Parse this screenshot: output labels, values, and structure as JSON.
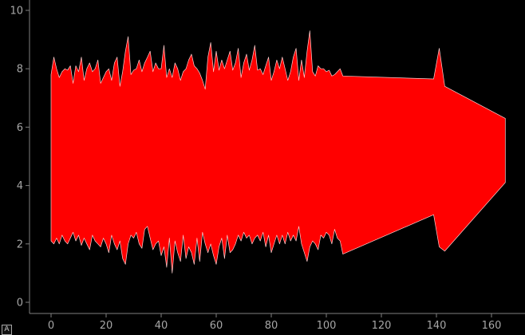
{
  "chart_data": {
    "type": "area",
    "title": "",
    "xlabel": "",
    "ylabel": "",
    "xlim": [
      -6.5,
      169
    ],
    "ylim": [
      -0.3,
      10.5
    ],
    "x_ticks": [
      "0",
      "20",
      "40",
      "60",
      "80",
      "100",
      "120",
      "140",
      "160"
    ],
    "y_ticks": [
      "0",
      "2",
      "4",
      "6",
      "8",
      "10"
    ],
    "grid": false,
    "legend": "none",
    "fill_color": "#ff0000",
    "series": [
      {
        "x": [
          0,
          1,
          2,
          3,
          4,
          5,
          6,
          7,
          8,
          9,
          10,
          11,
          12,
          13,
          14,
          15,
          16,
          17,
          18,
          19,
          20,
          21,
          22,
          23,
          24,
          25,
          26,
          27,
          28,
          29,
          30,
          31,
          32,
          33,
          34,
          35,
          36,
          37,
          38,
          39,
          40,
          41,
          42,
          43,
          44,
          45,
          46,
          47,
          48,
          49,
          50,
          51,
          52,
          53,
          54,
          55,
          56,
          57,
          58,
          59,
          60,
          61,
          62,
          63,
          64,
          65,
          66,
          67,
          68,
          69,
          70,
          71,
          72,
          73,
          74,
          75,
          76,
          77,
          78,
          79,
          80,
          81,
          82,
          83,
          84,
          85,
          86,
          87,
          88,
          89,
          90,
          91,
          92,
          93,
          94,
          95,
          96,
          97,
          98,
          99,
          100,
          101,
          102,
          103,
          104,
          105,
          106,
          139,
          141,
          143,
          165
        ],
        "lower": [
          2.1,
          2.0,
          2.2,
          2.0,
          2.3,
          2.1,
          2.0,
          2.2,
          2.4,
          2.1,
          2.3,
          1.95,
          2.2,
          2.0,
          1.8,
          2.3,
          2.1,
          2.0,
          1.9,
          2.2,
          2.0,
          1.7,
          2.3,
          2.0,
          1.8,
          2.1,
          1.5,
          1.3,
          2.0,
          2.3,
          2.2,
          2.4,
          2.0,
          1.85,
          2.5,
          2.6,
          2.2,
          1.8,
          2.0,
          2.1,
          1.6,
          1.9,
          1.2,
          2.2,
          1.0,
          2.1,
          1.7,
          1.4,
          2.3,
          1.5,
          1.9,
          1.7,
          1.3,
          2.2,
          1.4,
          2.4,
          2.0,
          1.7,
          2.0,
          1.6,
          1.3,
          1.9,
          2.2,
          1.5,
          2.3,
          1.7,
          1.8,
          2.0,
          2.3,
          2.1,
          2.4,
          2.2,
          2.3,
          2.0,
          2.2,
          2.3,
          2.1,
          2.4,
          1.9,
          2.3,
          1.7,
          2.0,
          2.3,
          2.0,
          2.3,
          2.0,
          2.4,
          2.1,
          2.3,
          2.1,
          2.6,
          2.0,
          1.7,
          1.4,
          1.9,
          2.1,
          2.0,
          1.8,
          2.3,
          2.2,
          2.4,
          2.3,
          2.0,
          2.5,
          2.2,
          2.1,
          1.65,
          3.0,
          1.9,
          1.75,
          4.1
        ],
        "upper": [
          7.8,
          8.4,
          8.0,
          7.7,
          7.9,
          8.0,
          7.95,
          8.1,
          7.5,
          8.1,
          7.9,
          8.4,
          7.6,
          8.0,
          8.2,
          7.9,
          8.0,
          8.3,
          7.5,
          7.7,
          7.9,
          8.0,
          7.6,
          8.2,
          8.4,
          7.4,
          7.9,
          8.6,
          9.1,
          7.8,
          7.95,
          8.0,
          8.3,
          7.9,
          8.2,
          8.4,
          8.6,
          7.9,
          8.2,
          8.0,
          8.0,
          8.8,
          7.7,
          8.0,
          7.7,
          8.2,
          8.0,
          7.6,
          7.9,
          8.0,
          8.3,
          8.5,
          8.1,
          8.0,
          7.85,
          7.6,
          7.3,
          8.4,
          8.9,
          7.9,
          8.6,
          7.95,
          8.3,
          8.0,
          8.3,
          8.6,
          7.95,
          8.2,
          8.7,
          7.7,
          8.2,
          8.5,
          7.95,
          8.3,
          8.8,
          7.95,
          8.0,
          7.8,
          8.1,
          8.4,
          7.6,
          7.9,
          8.3,
          8.0,
          8.4,
          8.0,
          7.6,
          7.9,
          8.4,
          8.7,
          7.6,
          8.3,
          7.7,
          8.6,
          9.3,
          7.9,
          7.75,
          8.1,
          8.0,
          8.0,
          7.9,
          7.95,
          7.75,
          7.8,
          7.9,
          8.0,
          7.75,
          7.65,
          8.7,
          7.4,
          6.3
        ]
      }
    ]
  },
  "controls": {
    "auto_range_label": "A"
  }
}
